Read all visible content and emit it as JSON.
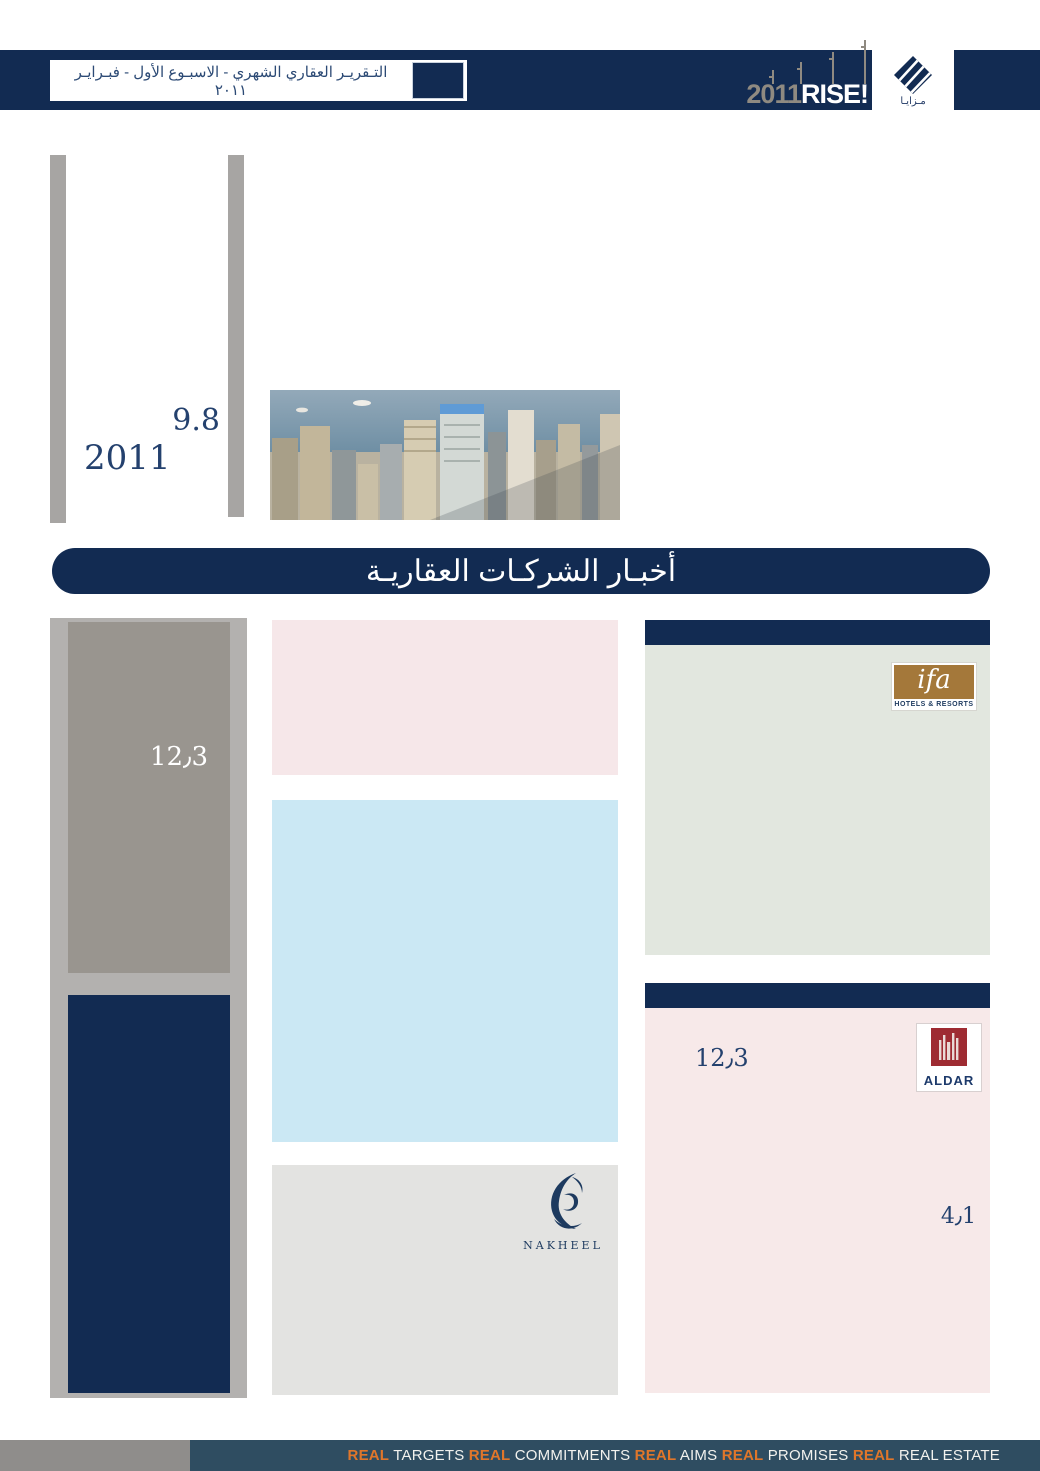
{
  "colors": {
    "navy": "#122B52",
    "footer_teal": "#2F4D61",
    "orange": "#E0762A",
    "rail_gray": "#A7A5A3",
    "stat_gray": "#99958F",
    "outer_gray": "#B3B1AF",
    "pink": "#F6E7E9",
    "blue": "#CBE8F4",
    "green": "#E2E7DF",
    "panel_gray": "#E3E3E1",
    "ifa_gold": "#A4783A",
    "aldar_maroon": "#9E2B32",
    "footer_gray": "#8F8D8B"
  },
  "header": {
    "title": "التـقريـر العقاري الشهري - الاسبـوع الأول - فبـرايـر ٢٠١١",
    "rise_year": "2011",
    "rise_word": "RISE!",
    "brand_arabic": "مـزايـا"
  },
  "hero": {
    "value": "9.8",
    "year": "2011"
  },
  "section_banner": {
    "title": "أخبـار الشركـات العقاريـة"
  },
  "left_panel": {
    "value": "12٫3"
  },
  "companies": {
    "ifa": {
      "name": "ifa",
      "caption": "HOTELS & RESORTS"
    },
    "aldar": {
      "name": "ALDAR",
      "value1": "12٫3",
      "value2": "4٫1"
    },
    "nakheel": {
      "name": "NAKHEEL"
    }
  },
  "footer": {
    "segments": [
      {
        "text": "REAL",
        "highlight": true
      },
      {
        "text": " TARGETS ",
        "highlight": false
      },
      {
        "text": "REAL",
        "highlight": true
      },
      {
        "text": " COMMITMENTS ",
        "highlight": false
      },
      {
        "text": "REAL",
        "highlight": true
      },
      {
        "text": " AIMS ",
        "highlight": false
      },
      {
        "text": "REAL",
        "highlight": true
      },
      {
        "text": " PROMISES ",
        "highlight": false
      },
      {
        "text": "REAL",
        "highlight": true
      },
      {
        "text": " REAL ESTATE",
        "highlight": false
      }
    ]
  }
}
